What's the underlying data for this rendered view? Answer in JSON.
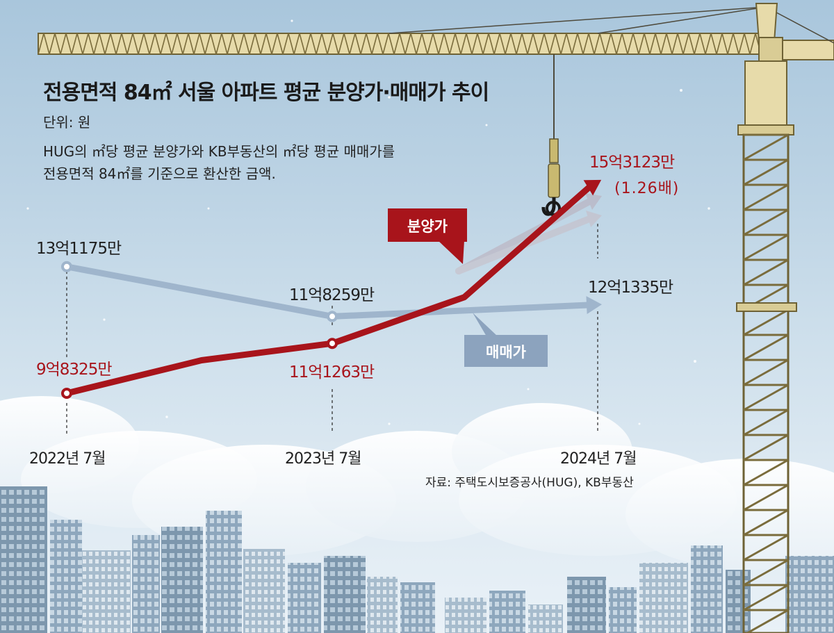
{
  "title": "전용면적 84㎡ 서울 아파트 평균 분양가·매매가 추이",
  "unit": "단위: 원",
  "note_lines": [
    "HUG의 ㎡당 평균 분양가와 KB부동산의 ㎡당 평균 매매가를",
    "전용면적 84㎡를 기준으로 환산한 금액."
  ],
  "source": "자료: 주택도시보증공사(HUG), KB부동산",
  "colors": {
    "presale": "#a8141b",
    "market": "#9fb5cc",
    "badge_market": "#8ca3be"
  },
  "chart_data": {
    "type": "line",
    "x": [
      "2022년 7월",
      "2023년 7월",
      "2024년 7월"
    ],
    "series": [
      {
        "name": "분양가",
        "values": [
          983250000,
          1112630000,
          1531230000
        ],
        "labels": [
          "9억8325만",
          "11억1263만",
          "15억3123만"
        ],
        "extra_label": "(1.26배)"
      },
      {
        "name": "매매가",
        "values": [
          1311750000,
          1182590000,
          1213350000
        ],
        "labels": [
          "13억1175만",
          "11억8259만",
          "12억1335만"
        ]
      }
    ]
  }
}
